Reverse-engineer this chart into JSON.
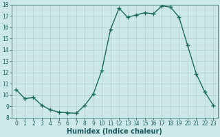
{
  "x": [
    0,
    1,
    2,
    3,
    4,
    5,
    6,
    7,
    8,
    9,
    10,
    11,
    12,
    13,
    14,
    15,
    16,
    17,
    18,
    19,
    20,
    21,
    22,
    23
  ],
  "y": [
    10.5,
    9.7,
    9.8,
    9.1,
    8.7,
    8.5,
    8.45,
    8.4,
    9.1,
    10.1,
    12.2,
    15.8,
    17.7,
    16.9,
    17.1,
    17.3,
    17.2,
    17.9,
    17.8,
    16.9,
    14.4,
    11.9,
    10.3,
    9.1
  ],
  "line_color": "#1a6b5a",
  "marker": "+",
  "marker_size": 4,
  "marker_linewidth": 1.0,
  "bg_color": "#cce8e8",
  "grid_major_color": "#b0cccc",
  "grid_minor_color": "#c8dede",
  "xlabel": "Humidex (Indice chaleur)",
  "xlim": [
    -0.5,
    23.5
  ],
  "ylim": [
    8,
    18
  ],
  "yticks": [
    8,
    9,
    10,
    11,
    12,
    13,
    14,
    15,
    16,
    17,
    18
  ],
  "xticks": [
    0,
    1,
    2,
    3,
    4,
    5,
    6,
    7,
    8,
    9,
    10,
    11,
    12,
    13,
    14,
    15,
    16,
    17,
    18,
    19,
    20,
    21,
    22,
    23
  ],
  "tick_fontsize": 5.5,
  "xlabel_fontsize": 7,
  "label_color": "#1a5a5a",
  "linewidth": 1.0
}
